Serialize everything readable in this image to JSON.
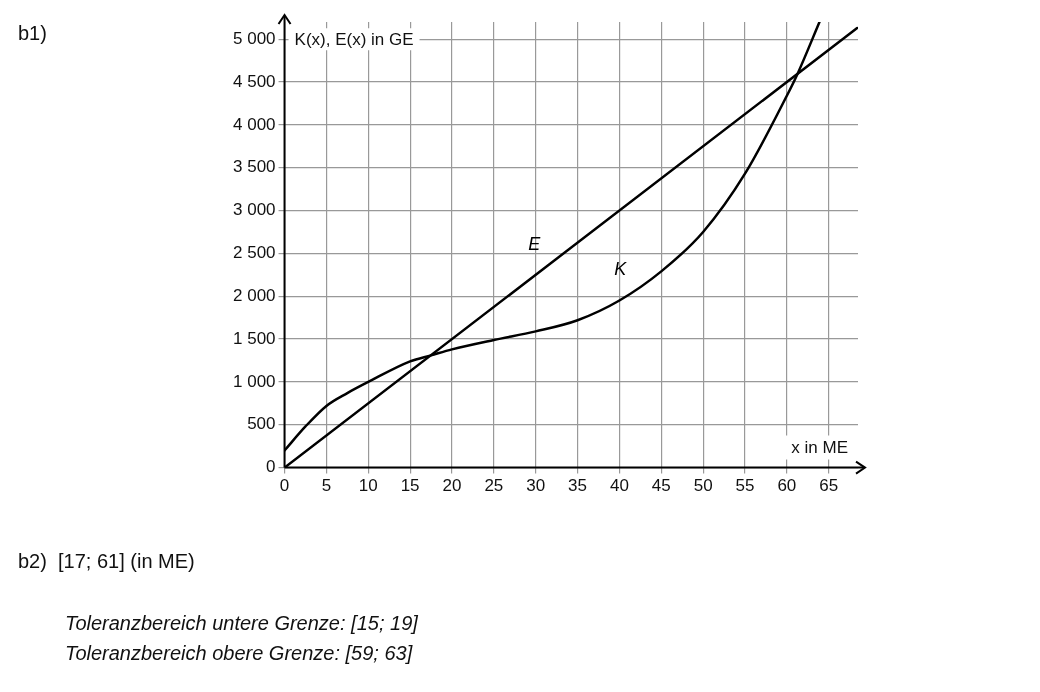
{
  "chart_data": {
    "type": "line",
    "xlabel": "x in ME",
    "ylabel": "K(x), E(x) in GE",
    "xlim": [
      0,
      68.5
    ],
    "xticks": [
      0,
      5,
      10,
      15,
      20,
      25,
      30,
      35,
      40,
      45,
      50,
      55,
      60,
      65
    ],
    "ylim": [
      0,
      5200
    ],
    "yticks": [
      0,
      500,
      {
        "value": 1000,
        "label": "1 000"
      },
      {
        "value": 1500,
        "label": "1 500"
      },
      {
        "value": 2000,
        "label": "2 000"
      },
      {
        "value": 2500,
        "label": "2 500"
      },
      {
        "value": 3000,
        "label": "3 000"
      },
      {
        "value": 3500,
        "label": "3 500"
      },
      {
        "value": 4000,
        "label": "4 000"
      },
      {
        "value": 4500,
        "label": "4 500"
      },
      {
        "value": 5000,
        "label": "5 000"
      }
    ],
    "grid": true,
    "legend": false,
    "marker": "none",
    "line_style": "solid",
    "series": [
      {
        "name": "E",
        "color": "#000000",
        "x": [
          0,
          68.4
        ],
        "values": [
          0,
          5130
        ]
      },
      {
        "name": "K",
        "color": "#000000",
        "x": [
          0,
          2.5,
          5,
          7.5,
          10,
          15,
          17.5,
          20,
          25,
          30,
          35,
          40,
          45,
          50,
          55,
          60,
          61.3,
          63.9
        ],
        "values": [
          200,
          480,
          720,
          870,
          1000,
          1240,
          1310,
          1380,
          1490,
          1590,
          1720,
          1950,
          2290,
          2750,
          3430,
          4340,
          4600,
          5200
        ]
      }
    ],
    "annotations": [
      "b1)",
      "b2)  [17; 61] (in ME)",
      "Toleranzbereich untere Grenze: [15; 19]",
      "Toleranzbereich obere Grenze: [59; 63]"
    ]
  }
}
